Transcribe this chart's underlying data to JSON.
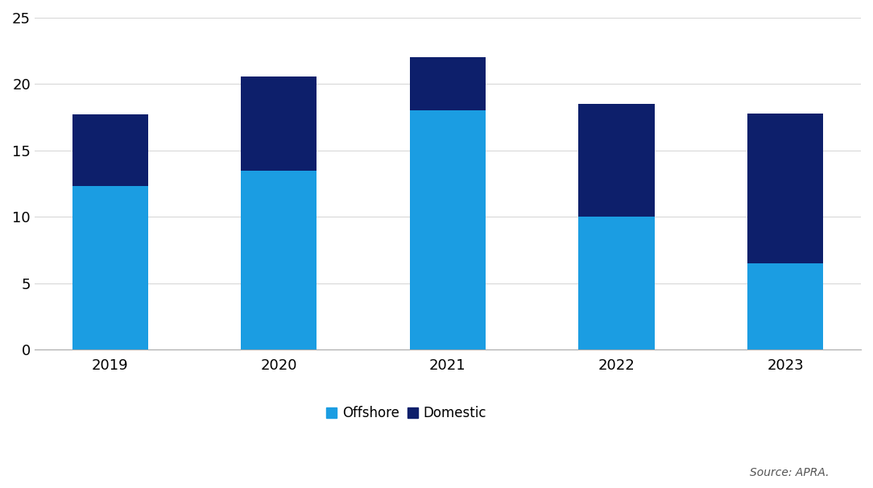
{
  "years": [
    "2019",
    "2020",
    "2021",
    "2022",
    "2023"
  ],
  "offshore": [
    12.3,
    13.5,
    18.0,
    10.0,
    6.5
  ],
  "domestic": [
    5.4,
    7.1,
    4.0,
    8.5,
    11.3
  ],
  "offshore_color": "#1b9de2",
  "domestic_color": "#0d1f6b",
  "ylim": [
    0,
    25
  ],
  "yticks": [
    0,
    5,
    10,
    15,
    20,
    25
  ],
  "legend_labels": [
    "Offshore",
    "Domestic"
  ],
  "source_text": "Source: APRA.",
  "background_color": "#ffffff",
  "bar_width": 0.45,
  "grid_color": "#d8d8d8",
  "tick_fontsize": 13,
  "legend_fontsize": 12
}
